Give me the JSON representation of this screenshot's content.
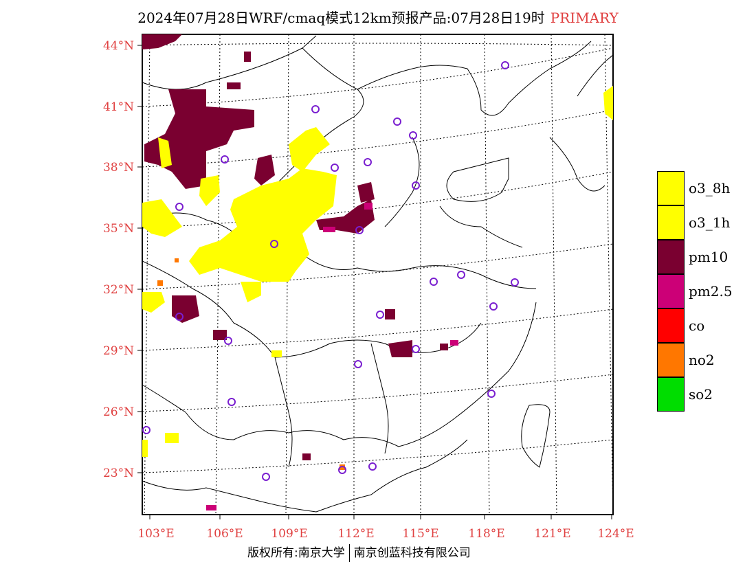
{
  "title": {
    "main": "2024年07月28日WRF/cmaq模式12km预报产品:07月28日19时",
    "tag": "PRIMARY"
  },
  "axes": {
    "lat_labels": [
      "44°N",
      "41°N",
      "38°N",
      "35°N",
      "32°N",
      "29°N",
      "26°N",
      "23°N"
    ],
    "lon_labels": [
      "103°E",
      "106°E",
      "109°E",
      "112°E",
      "115°E",
      "118°E",
      "121°E",
      "124°E"
    ],
    "label_color": "#e04040"
  },
  "legend": [
    {
      "label": "o3_8h",
      "color": "#ffff00"
    },
    {
      "label": "o3_1h",
      "color": "#ffff00"
    },
    {
      "label": "pm10",
      "color": "#7a0030"
    },
    {
      "label": "pm2.5",
      "color": "#cc0077"
    },
    {
      "label": "co",
      "color": "#ff0000"
    },
    {
      "label": "no2",
      "color": "#ff7700"
    },
    {
      "label": "so2",
      "color": "#00dd00"
    }
  ],
  "footer": {
    "left": "版权所有:南京大学",
    "right": "南京创蓝科技有限公司"
  }
}
